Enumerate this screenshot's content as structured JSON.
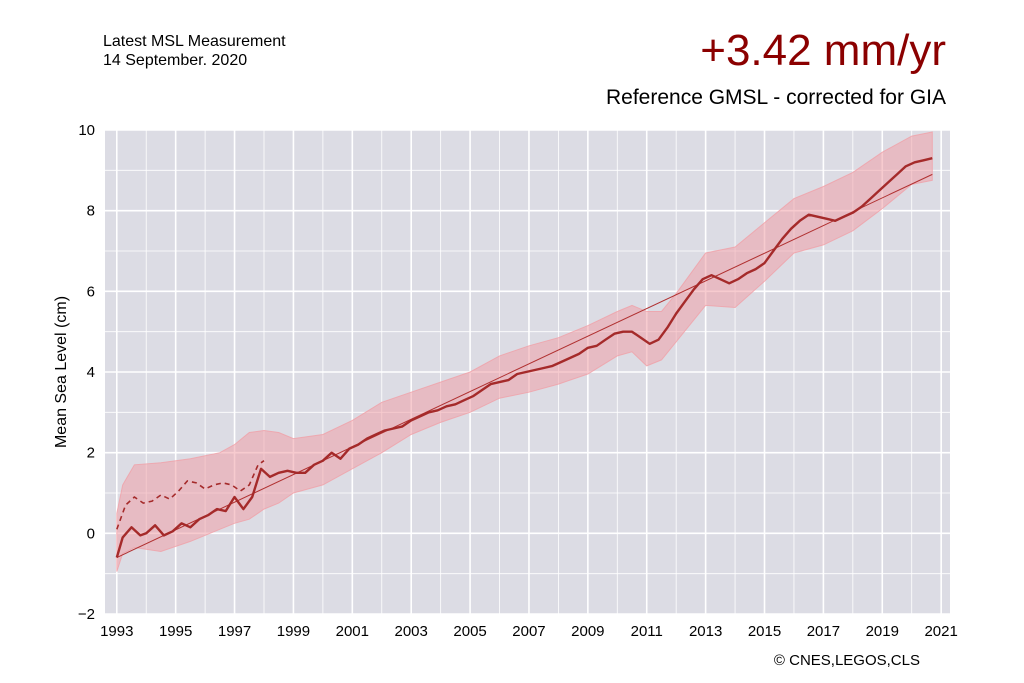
{
  "header": {
    "measurement_label": "Latest MSL Measurement",
    "measurement_date": "14 September. 2020",
    "rate": "+3.42 mm/yr"
  },
  "credit": "© CNES,LEGOS,CLS",
  "colors": {
    "plot_background": "#dcdce4",
    "series": "#a52a2a",
    "band": "#f0a0a8",
    "trend": "#b03030",
    "title": "#8b0000"
  },
  "chart_data": {
    "type": "line",
    "title": "Reference GMSL - corrected for GIA",
    "xlabel": "",
    "ylabel": "Mean Sea Level (cm)",
    "xlim": [
      1992.6,
      2021.3
    ],
    "ylim": [
      -2,
      10
    ],
    "x_ticks": [
      1993,
      1995,
      1997,
      1999,
      2001,
      2003,
      2005,
      2007,
      2009,
      2011,
      2013,
      2015,
      2017,
      2019,
      2021
    ],
    "y_ticks": [
      -2,
      0,
      2,
      4,
      6,
      8,
      10
    ],
    "grid": true,
    "series": [
      {
        "style": "solid",
        "x": [
          1993.0,
          1993.2,
          1993.5,
          1993.8,
          1994.0,
          1994.3,
          1994.6,
          1994.9,
          1995.2,
          1995.5,
          1995.8,
          1996.1,
          1996.4,
          1996.7,
          1997.0,
          1997.3,
          1997.6,
          1997.9,
          1998.2,
          1998.5,
          1998.8,
          1999.1,
          1999.4,
          1999.7,
          2000.0,
          2000.3,
          2000.6,
          2000.9,
          2001.2,
          2001.5,
          2001.8,
          2002.1,
          2002.4,
          2002.7,
          2003.0,
          2003.3,
          2003.6,
          2003.9,
          2004.2,
          2004.5,
          2004.8,
          2005.1,
          2005.4,
          2005.7,
          2006.0,
          2006.3,
          2006.6,
          2006.9,
          2007.2,
          2007.5,
          2007.8,
          2008.1,
          2008.4,
          2008.7,
          2009.0,
          2009.3,
          2009.6,
          2009.9,
          2010.2,
          2010.5,
          2010.8,
          2011.1,
          2011.4,
          2011.7,
          2012.0,
          2012.3,
          2012.6,
          2012.9,
          2013.2,
          2013.5,
          2013.8,
          2014.1,
          2014.4,
          2014.7,
          2015.0,
          2015.3,
          2015.6,
          2015.9,
          2016.2,
          2016.5,
          2016.8,
          2017.1,
          2017.4,
          2017.7,
          2018.0,
          2018.3,
          2018.6,
          2018.9,
          2019.2,
          2019.5,
          2019.8,
          2020.1,
          2020.4,
          2020.7
        ],
        "values": [
          -0.6,
          -0.1,
          0.15,
          -0.05,
          0.0,
          0.2,
          -0.05,
          0.05,
          0.25,
          0.15,
          0.35,
          0.45,
          0.6,
          0.55,
          0.9,
          0.6,
          0.9,
          1.6,
          1.4,
          1.5,
          1.55,
          1.5,
          1.5,
          1.7,
          1.8,
          2.0,
          1.85,
          2.1,
          2.2,
          2.35,
          2.45,
          2.55,
          2.6,
          2.65,
          2.8,
          2.9,
          3.0,
          3.05,
          3.15,
          3.2,
          3.3,
          3.4,
          3.55,
          3.7,
          3.75,
          3.8,
          3.95,
          4.0,
          4.05,
          4.1,
          4.15,
          4.25,
          4.35,
          4.45,
          4.6,
          4.65,
          4.8,
          4.95,
          5.0,
          5.0,
          4.85,
          4.7,
          4.8,
          5.1,
          5.45,
          5.75,
          6.05,
          6.3,
          6.4,
          6.3,
          6.2,
          6.3,
          6.45,
          6.55,
          6.7,
          7.0,
          7.3,
          7.55,
          7.75,
          7.9,
          7.85,
          7.8,
          7.75,
          7.85,
          7.95,
          8.1,
          8.3,
          8.5,
          8.7,
          8.9,
          9.1,
          9.2,
          9.25,
          9.3
        ]
      },
      {
        "style": "dashed",
        "x": [
          1993.0,
          1993.3,
          1993.6,
          1993.9,
          1994.2,
          1994.5,
          1994.8,
          1995.1,
          1995.4,
          1995.7,
          1996.0,
          1996.3,
          1996.6,
          1996.9,
          1997.2,
          1997.5,
          1997.8,
          1998.0
        ],
        "values": [
          0.1,
          0.7,
          0.9,
          0.75,
          0.8,
          0.95,
          0.85,
          1.05,
          1.3,
          1.25,
          1.1,
          1.2,
          1.25,
          1.2,
          1.05,
          1.2,
          1.7,
          1.8
        ]
      }
    ],
    "uncertainty_band": {
      "x": [
        1993.0,
        1993.2,
        1993.6,
        1994.5,
        1995.5,
        1996.5,
        1997.0,
        1997.5,
        1998.0,
        1998.5,
        1999.0,
        2000.0,
        2001.0,
        2002.0,
        2003.0,
        2004.0,
        2005.0,
        2006.0,
        2007.0,
        2008.0,
        2009.0,
        2010.0,
        2010.5,
        2011.0,
        2011.5,
        2012.0,
        2013.0,
        2014.0,
        2015.0,
        2016.0,
        2017.0,
        2018.0,
        2019.0,
        2020.0,
        2020.7
      ],
      "upper": [
        0.5,
        1.2,
        1.7,
        1.75,
        1.85,
        2.0,
        2.2,
        2.5,
        2.55,
        2.5,
        2.35,
        2.45,
        2.8,
        3.25,
        3.5,
        3.75,
        4.0,
        4.4,
        4.65,
        4.85,
        5.15,
        5.5,
        5.65,
        5.5,
        5.5,
        5.95,
        6.95,
        7.1,
        7.7,
        8.3,
        8.6,
        8.95,
        9.45,
        9.85,
        9.95
      ],
      "lower": [
        -0.95,
        -0.5,
        -0.35,
        -0.45,
        -0.2,
        0.1,
        0.25,
        0.35,
        0.6,
        0.75,
        1.0,
        1.2,
        1.6,
        2.0,
        2.45,
        2.75,
        3.0,
        3.35,
        3.5,
        3.7,
        3.95,
        4.4,
        4.5,
        4.15,
        4.3,
        4.75,
        5.65,
        5.6,
        6.25,
        6.95,
        7.15,
        7.5,
        8.05,
        8.65,
        8.75
      ]
    },
    "trend_line": {
      "x": [
        1993.0,
        2020.7
      ],
      "values": [
        -0.6,
        8.9
      ]
    }
  }
}
